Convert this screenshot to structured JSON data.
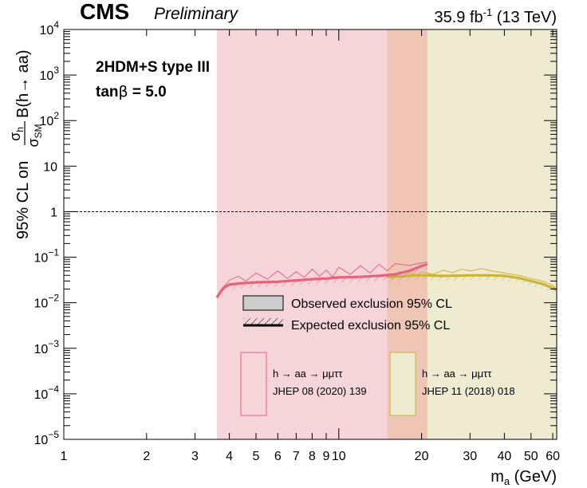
{
  "header": {
    "experiment": "CMS",
    "status": "Preliminary",
    "lumi_prefix": "35.9 fb",
    "lumi_exp": "-1",
    "lumi_suffix": " (13 TeV)"
  },
  "model": {
    "line1": "2HDM+S type III",
    "line2_prefix": "tan",
    "line2_beta": "β",
    "line2_value": " = 5.0"
  },
  "legend": {
    "observed": "Observed exclusion 95% CL",
    "expected": "Expected exclusion 95% CL",
    "analysis1_channel": "h → aa → μμττ",
    "analysis1_ref": "JHEP 08 (2020) 139",
    "analysis2_channel": "h → aa → μμττ",
    "analysis2_ref": "JHEP 11 (2018) 018"
  },
  "colors": {
    "analysis1": "#e8637a",
    "analysis1_fill": "#f6d5da",
    "analysis2": "#c9b53a",
    "analysis2_fill": "#efebd0",
    "overlap_fill": "#efc6b6"
  },
  "chart_data": {
    "type": "line",
    "xlabel_main": "m",
    "xlabel_sub": "a",
    "xlabel_unit": " (GeV)",
    "xscale": "log",
    "yscale": "log",
    "xlim": [
      1,
      62
    ],
    "ylim": [
      1e-05,
      10000
    ],
    "x_ticks": [
      {
        "v": 1,
        "label": "1"
      },
      {
        "v": 2,
        "label": "2"
      },
      {
        "v": 3,
        "label": "3"
      },
      {
        "v": 4,
        "label": "4"
      },
      {
        "v": 5,
        "label": "5"
      },
      {
        "v": 6,
        "label": "6"
      },
      {
        "v": 7,
        "label": "7"
      },
      {
        "v": 8,
        "label": "8"
      },
      {
        "v": 9,
        "label": "9"
      },
      {
        "v": 10,
        "label": "10"
      },
      {
        "v": 20,
        "label": "20"
      },
      {
        "v": 30,
        "label": "30"
      },
      {
        "v": 40,
        "label": "40"
      },
      {
        "v": 50,
        "label": "50"
      },
      {
        "v": 60,
        "label": "60"
      }
    ],
    "y_ticks": [
      {
        "v": 1e-05,
        "base": "10",
        "exp": "−5"
      },
      {
        "v": 0.0001,
        "base": "10",
        "exp": "−4"
      },
      {
        "v": 0.001,
        "base": "10",
        "exp": "−3"
      },
      {
        "v": 0.01,
        "base": "10",
        "exp": "−2"
      },
      {
        "v": 0.1,
        "base": "10",
        "exp": "−1"
      },
      {
        "v": 1,
        "base": "1",
        "exp": ""
      },
      {
        "v": 10,
        "base": "10",
        "exp": ""
      },
      {
        "v": 100,
        "base": "10",
        "exp": "2"
      },
      {
        "v": 1000,
        "base": "10",
        "exp": "3"
      },
      {
        "v": 10000,
        "base": "10",
        "exp": "4"
      }
    ],
    "ylabel_prefix": "95% CL on ",
    "ylabel_num": "σ",
    "ylabel_num_sub": "h",
    "ylabel_den": "σ",
    "ylabel_den_sub": "SM",
    "ylabel_suffix": "B(h→ aa)",
    "reference_line": 1,
    "series": [
      {
        "channel": "h → aa → μμττ",
        "reference": "JHEP 08 (2020) 139",
        "mass_range": [
          3.6,
          21
        ],
        "expected": [
          [
            3.6,
            0.013
          ],
          [
            3.8,
            0.021
          ],
          [
            4.0,
            0.025
          ],
          [
            4.5,
            0.027
          ],
          [
            5,
            0.028
          ],
          [
            6,
            0.029
          ],
          [
            7,
            0.031
          ],
          [
            8,
            0.033
          ],
          [
            9,
            0.034
          ],
          [
            10,
            0.036
          ],
          [
            12,
            0.037
          ],
          [
            14,
            0.039
          ],
          [
            16,
            0.042
          ],
          [
            18,
            0.05
          ],
          [
            20,
            0.064
          ],
          [
            21,
            0.07
          ]
        ],
        "observed": [
          [
            3.6,
            0.013
          ],
          [
            3.8,
            0.022
          ],
          [
            4.0,
            0.031
          ],
          [
            4.3,
            0.038
          ],
          [
            4.6,
            0.03
          ],
          [
            5,
            0.045
          ],
          [
            5.5,
            0.033
          ],
          [
            6,
            0.05
          ],
          [
            6.5,
            0.034
          ],
          [
            7,
            0.048
          ],
          [
            7.5,
            0.036
          ],
          [
            8,
            0.055
          ],
          [
            8.5,
            0.038
          ],
          [
            9,
            0.052
          ],
          [
            9.5,
            0.037
          ],
          [
            10,
            0.06
          ],
          [
            11,
            0.042
          ],
          [
            12,
            0.065
          ],
          [
            13,
            0.045
          ],
          [
            14,
            0.07
          ],
          [
            15,
            0.05
          ],
          [
            16,
            0.072
          ],
          [
            18,
            0.066
          ],
          [
            20,
            0.075
          ],
          [
            21,
            0.078
          ]
        ]
      },
      {
        "channel": "h → aa → μμττ",
        "reference": "JHEP 11 (2018) 018",
        "mass_range": [
          15,
          62
        ],
        "expected": [
          [
            15,
            0.037
          ],
          [
            17,
            0.038
          ],
          [
            19,
            0.04
          ],
          [
            21,
            0.04
          ],
          [
            23,
            0.039
          ],
          [
            26,
            0.039
          ],
          [
            30,
            0.04
          ],
          [
            35,
            0.04
          ],
          [
            40,
            0.039
          ],
          [
            45,
            0.035
          ],
          [
            50,
            0.03
          ],
          [
            55,
            0.026
          ],
          [
            60,
            0.021
          ],
          [
            62,
            0.019
          ]
        ],
        "observed": [
          [
            15,
            0.037
          ],
          [
            16,
            0.043
          ],
          [
            17,
            0.036
          ],
          [
            18,
            0.046
          ],
          [
            19,
            0.039
          ],
          [
            20,
            0.048
          ],
          [
            22,
            0.042
          ],
          [
            24,
            0.052
          ],
          [
            26,
            0.046
          ],
          [
            28,
            0.055
          ],
          [
            30,
            0.05
          ],
          [
            33,
            0.056
          ],
          [
            36,
            0.05
          ],
          [
            40,
            0.045
          ],
          [
            45,
            0.04
          ],
          [
            50,
            0.034
          ],
          [
            55,
            0.03
          ],
          [
            60,
            0.024
          ],
          [
            62,
            0.02
          ]
        ]
      }
    ]
  }
}
